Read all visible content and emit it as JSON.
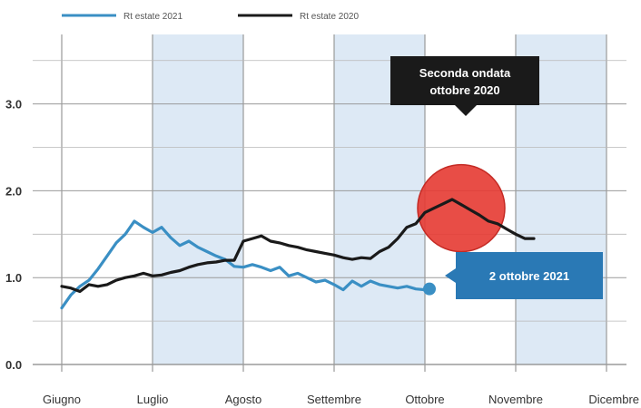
{
  "chart_data": {
    "type": "line",
    "title": "",
    "xlabel": "",
    "ylabel": "",
    "x_ticks": [
      "Giugno",
      "Luglio",
      "Agosto",
      "Settembre",
      "Ottobre",
      "Novembre",
      "Dicembre"
    ],
    "x_range": [
      0,
      6
    ],
    "y_ticks": [
      "0.0",
      "1.0",
      "2.0",
      "3.0"
    ],
    "y_tick_values": [
      0,
      1,
      2,
      3
    ],
    "ylim": [
      0,
      3.8
    ],
    "grid": true,
    "shaded_months": [
      1,
      3,
      5
    ],
    "colors": {
      "shade": "#dde9f5",
      "grid": "#9a9a9a",
      "series_2021": "#3a8fc4",
      "series_2020": "#1a1a1a",
      "highlight": "#e63a32",
      "callout_dark": "#1a1a1a",
      "callout_blue": "#2a79b5"
    },
    "legend_position": "top-left",
    "series": [
      {
        "name": "Rt estate 2021",
        "x": [
          0,
          0.1,
          0.2,
          0.3,
          0.4,
          0.5,
          0.6,
          0.7,
          0.8,
          0.9,
          1.0,
          1.1,
          1.2,
          1.3,
          1.4,
          1.5,
          1.6,
          1.7,
          1.8,
          1.9,
          2.0,
          2.1,
          2.2,
          2.3,
          2.4,
          2.5,
          2.6,
          2.7,
          2.8,
          2.9,
          3.0,
          3.1,
          3.2,
          3.3,
          3.4,
          3.5,
          3.6,
          3.7,
          3.8,
          3.9,
          4.0,
          4.05
        ],
        "values": [
          0.65,
          0.8,
          0.9,
          0.97,
          1.1,
          1.25,
          1.4,
          1.5,
          1.65,
          1.58,
          1.52,
          1.58,
          1.46,
          1.37,
          1.42,
          1.35,
          1.3,
          1.25,
          1.21,
          1.13,
          1.12,
          1.15,
          1.12,
          1.08,
          1.12,
          1.02,
          1.05,
          1.0,
          0.95,
          0.97,
          0.92,
          0.86,
          0.96,
          0.9,
          0.96,
          0.92,
          0.9,
          0.88,
          0.9,
          0.87,
          0.86,
          0.87
        ]
      },
      {
        "name": "Rt estate 2020",
        "x": [
          0,
          0.1,
          0.2,
          0.3,
          0.4,
          0.5,
          0.6,
          0.7,
          0.8,
          0.9,
          1.0,
          1.1,
          1.2,
          1.3,
          1.4,
          1.5,
          1.6,
          1.7,
          1.8,
          1.9,
          2.0,
          2.1,
          2.2,
          2.3,
          2.4,
          2.5,
          2.6,
          2.7,
          2.8,
          2.9,
          3.0,
          3.1,
          3.2,
          3.3,
          3.4,
          3.5,
          3.6,
          3.7,
          3.8,
          3.9,
          4.0,
          4.1,
          4.2,
          4.3,
          4.4,
          4.5,
          4.6,
          4.7,
          4.8,
          4.9,
          5.0,
          5.1,
          5.2
        ],
        "values": [
          0.9,
          0.88,
          0.84,
          0.92,
          0.9,
          0.92,
          0.97,
          1.0,
          1.02,
          1.05,
          1.02,
          1.03,
          1.06,
          1.08,
          1.12,
          1.15,
          1.17,
          1.18,
          1.2,
          1.2,
          1.42,
          1.45,
          1.48,
          1.42,
          1.4,
          1.37,
          1.35,
          1.32,
          1.3,
          1.28,
          1.26,
          1.23,
          1.21,
          1.23,
          1.22,
          1.3,
          1.35,
          1.45,
          1.58,
          1.62,
          1.75,
          1.8,
          1.85,
          1.9,
          1.84,
          1.78,
          1.72,
          1.65,
          1.62,
          1.56,
          1.5,
          1.45,
          1.45
        ]
      }
    ],
    "annotations": [
      {
        "text_line1": "Seconda ondata",
        "text_line2": "ottobre 2020",
        "target_x": 4.4,
        "target_y": 1.8,
        "style": "dark-callout"
      },
      {
        "text": "2 ottobre 2021",
        "target_x": 4.05,
        "target_y": 0.87,
        "style": "blue-callout"
      }
    ]
  }
}
